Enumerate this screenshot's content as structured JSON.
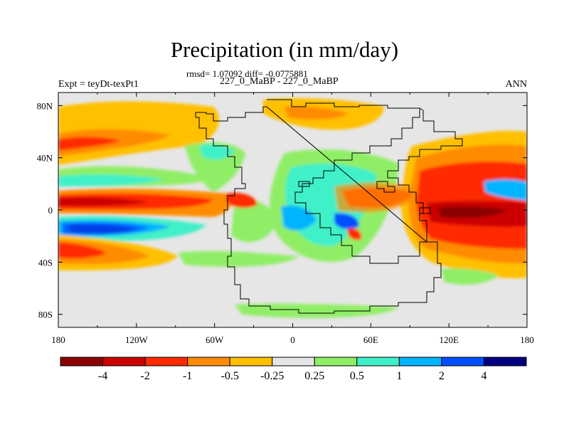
{
  "title": "Precipitation (in mm/day)",
  "stats_line": "rmsd= 1.07092 diff= -0.0775881",
  "comparison": "227_0_MaBP - 227_0_MaBP",
  "experiment": "Expt = teyDt-texPt1",
  "season": "ANN",
  "map": {
    "lat_ticks": [
      "80N",
      "40N",
      "0",
      "40S",
      "80S"
    ],
    "lat_values": [
      80,
      40,
      0,
      -40,
      -80
    ],
    "lon_ticks": [
      "180",
      "120W",
      "60W",
      "0",
      "60E",
      "120E",
      "180"
    ],
    "lon_values": [
      -180,
      -120,
      -60,
      0,
      60,
      120,
      180
    ]
  },
  "colorbar": {
    "labels": [
      "-4",
      "-2",
      "-1",
      "-0.5",
      "-0.25",
      "0.25",
      "0.5",
      "1",
      "2",
      "4"
    ],
    "colors": [
      "#8b0000",
      "#cc0000",
      "#ff2a00",
      "#ff8c00",
      "#ffc000",
      "#e6e6e6",
      "#90ee66",
      "#3ff0c8",
      "#00b4ff",
      "#0050ff",
      "#000080"
    ]
  }
}
